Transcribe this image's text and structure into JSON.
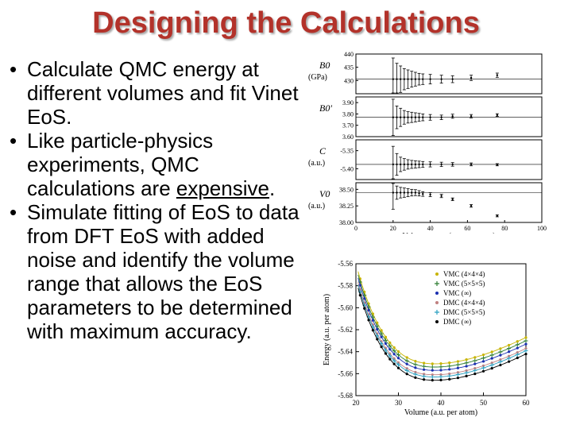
{
  "slide": {
    "title": "Designing the Calculations",
    "bullets": [
      {
        "text": "Calculate QMC energy at different volumes and fit Vinet EoS."
      },
      {
        "before": "Like particle-physics experiments, QMC calculations are ",
        "underlined": "expensive",
        "after": "."
      },
      {
        "text": "Simulate fitting of EoS to data from DFT EoS with added noise and identify the volume range that allows the EoS parameters to be determined with maximum accuracy."
      }
    ]
  },
  "chart_data": [
    {
      "type": "scatter",
      "xlabel": "Volume range (a.u. per atom)",
      "xlim": [
        0,
        100
      ],
      "x_ticks": [
        "0",
        "20",
        "40",
        "60",
        "80",
        "100"
      ],
      "panels": [
        {
          "label": "B0",
          "unit": "(GPa)",
          "ylim": [
            425,
            440
          ],
          "y_ticks": [
            "440",
            "435",
            "430"
          ],
          "center": 430.5,
          "points": [
            [
              20,
              430.5,
              8
            ],
            [
              22,
              430.5,
              6
            ],
            [
              24,
              430.5,
              5
            ],
            [
              26,
              430.5,
              4
            ],
            [
              28,
              430.5,
              3.5
            ],
            [
              30,
              430.5,
              3
            ],
            [
              32,
              430.5,
              2.6
            ],
            [
              34,
              430.5,
              2.2
            ],
            [
              36,
              430.5,
              2
            ],
            [
              40,
              430.5,
              1.8
            ],
            [
              46,
              430.5,
              1.5
            ],
            [
              52,
              430.5,
              1.3
            ],
            [
              62,
              431,
              1
            ],
            [
              76,
              432,
              0.8
            ]
          ]
        },
        {
          "label": "B0'",
          "unit": "",
          "ylim": [
            3.6,
            3.95
          ],
          "y_ticks": [
            "3.90",
            "3.80",
            "3.70",
            "3.60"
          ],
          "center": 3.77,
          "points": [
            [
              20,
              3.77,
              0.16
            ],
            [
              22,
              3.77,
              0.1
            ],
            [
              24,
              3.77,
              0.08
            ],
            [
              26,
              3.77,
              0.06
            ],
            [
              28,
              3.77,
              0.05
            ],
            [
              30,
              3.77,
              0.045
            ],
            [
              32,
              3.77,
              0.04
            ],
            [
              34,
              3.77,
              0.035
            ],
            [
              36,
              3.77,
              0.03
            ],
            [
              40,
              3.77,
              0.025
            ],
            [
              46,
              3.77,
              0.02
            ],
            [
              52,
              3.78,
              0.018
            ],
            [
              62,
              3.78,
              0.015
            ],
            [
              76,
              3.79,
              0.012
            ]
          ]
        },
        {
          "label": "C",
          "unit": "(a.u.)",
          "ylim": [
            -5.43,
            -5.32
          ],
          "y_ticks": [
            "-5.35",
            "-5.40"
          ],
          "center": -5.388,
          "points": [
            [
              20,
              -5.388,
              0.05
            ],
            [
              22,
              -5.388,
              0.03
            ],
            [
              24,
              -5.388,
              0.02
            ],
            [
              26,
              -5.388,
              0.016
            ],
            [
              28,
              -5.388,
              0.013
            ],
            [
              30,
              -5.388,
              0.011
            ],
            [
              32,
              -5.388,
              0.01
            ],
            [
              34,
              -5.388,
              0.009
            ],
            [
              36,
              -5.388,
              0.008
            ],
            [
              40,
              -5.388,
              0.007
            ],
            [
              46,
              -5.388,
              0.006
            ],
            [
              52,
              -5.388,
              0.005
            ],
            [
              62,
              -5.388,
              0.004
            ],
            [
              76,
              -5.389,
              0.003
            ]
          ]
        },
        {
          "label": "V0",
          "unit": "(a.u.)",
          "ylim": [
            38.0,
            38.6
          ],
          "y_ticks": [
            "38.50",
            "38.25",
            "38.00"
          ],
          "center": 38.45,
          "points": [
            [
              20,
              38.45,
              0.25
            ],
            [
              22,
              38.45,
              0.1
            ],
            [
              24,
              38.45,
              0.08
            ],
            [
              26,
              38.45,
              0.07
            ],
            [
              28,
              38.45,
              0.06
            ],
            [
              30,
              38.45,
              0.05
            ],
            [
              32,
              38.45,
              0.045
            ],
            [
              34,
              38.44,
              0.04
            ],
            [
              36,
              38.43,
              0.035
            ],
            [
              40,
              38.42,
              0.03
            ],
            [
              46,
              38.4,
              0.025
            ],
            [
              52,
              38.35,
              0.02
            ],
            [
              62,
              38.25,
              0.02
            ],
            [
              76,
              38.1,
              0.015
            ]
          ]
        }
      ]
    },
    {
      "type": "line",
      "xlabel": "Volume (a.u. per atom)",
      "ylabel": "Energy (a.u. per atom)",
      "xlim": [
        20,
        60
      ],
      "ylim": [
        -5.68,
        -5.56
      ],
      "x_ticks": [
        "20",
        "30",
        "40",
        "50",
        "60"
      ],
      "y_ticks": [
        "-5.56",
        "-5.58",
        "-5.60",
        "-5.62",
        "-5.64",
        "-5.66",
        "-5.68"
      ],
      "series": [
        {
          "name": "VMC (4×4×4)",
          "color": "#c8b400",
          "marker": "dot",
          "offset": 0.006
        },
        {
          "name": "VMC (5×5×5)",
          "color": "#2e7d32",
          "marker": "plus",
          "offset": 0.003
        },
        {
          "name": "VMC (∞)",
          "color": "#1a2fb0",
          "marker": "dot",
          "offset": 0.0
        },
        {
          "name": "DMC (4×4×4)",
          "color": "#c08080",
          "marker": "dot",
          "offset": -0.004
        },
        {
          "name": "DMC (5×5×5)",
          "color": "#2ba0c0",
          "marker": "plus",
          "offset": -0.006
        },
        {
          "name": "DMC (∞)",
          "color": "#000000",
          "marker": "dot",
          "offset": -0.009
        }
      ],
      "curve": {
        "E0": -5.657,
        "V0": 38.5,
        "A": 0.0031,
        "B": 0.0006
      },
      "x_points": [
        21,
        22,
        23,
        24,
        25,
        26,
        27,
        28,
        29,
        30,
        32,
        34,
        36,
        38,
        40,
        42,
        44,
        46,
        48,
        50,
        52,
        54,
        56,
        58,
        60
      ]
    }
  ]
}
